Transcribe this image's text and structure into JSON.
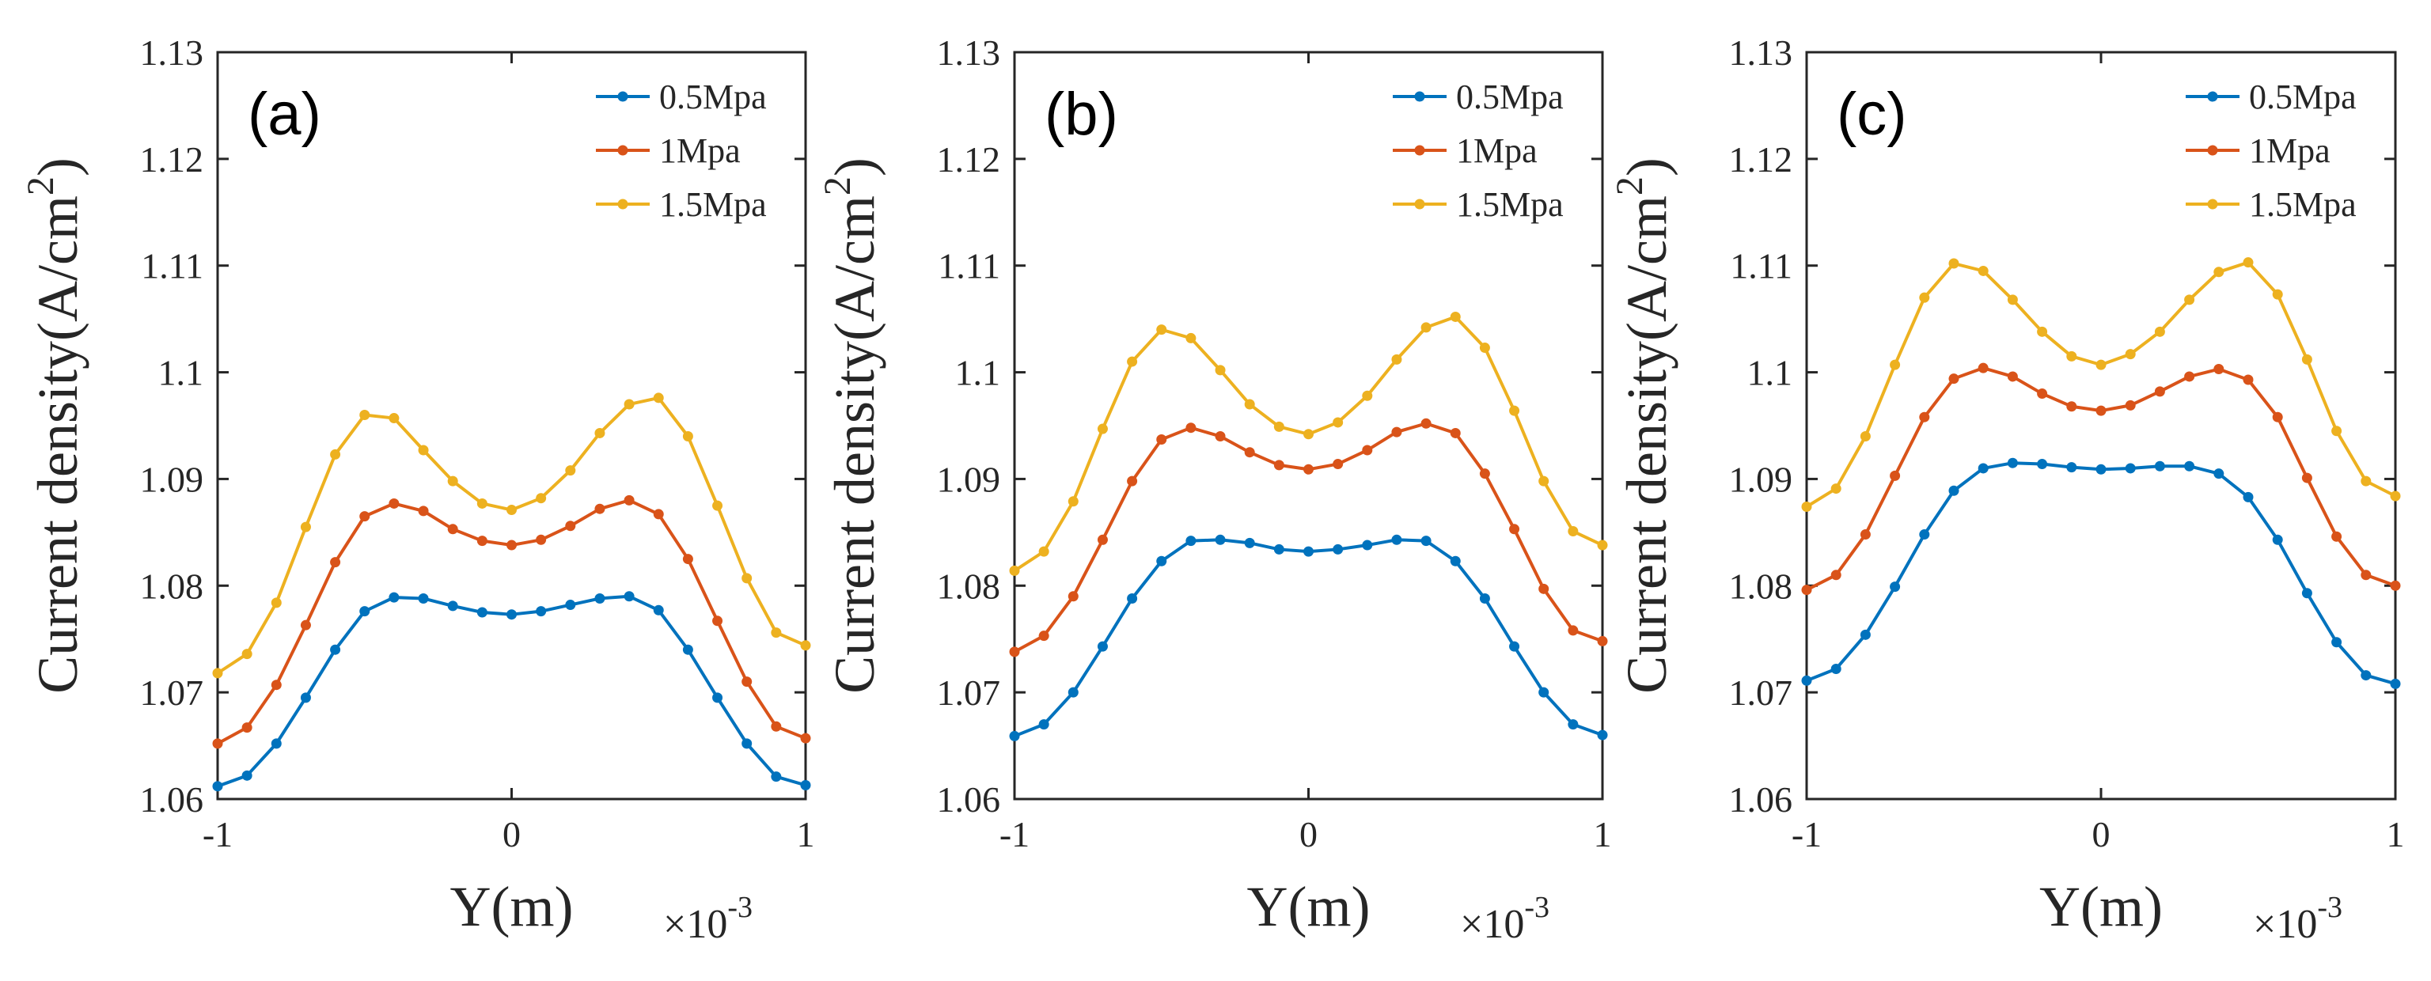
{
  "chart_data": [
    {
      "type": "line",
      "panel_label": "(a)",
      "xlabel": "Y(m)",
      "x_multiplier": "×10",
      "x_multiplier_exp": "-3",
      "ylabel": "Current density(A/cm",
      "ylabel_sup": "2",
      "ylabel_close": ")",
      "xlim": [
        -1,
        1
      ],
      "ylim": [
        1.06,
        1.13
      ],
      "xticks": [
        "-1",
        "0",
        "1"
      ],
      "yticks": [
        "1.06",
        "1.07",
        "1.08",
        "1.09",
        "1.1",
        "1.11",
        "1.12",
        "1.13"
      ],
      "legend_position": "top-right",
      "x": [
        -1,
        -0.9,
        -0.8,
        -0.7,
        -0.6,
        -0.5,
        -0.4,
        -0.3,
        -0.2,
        -0.1,
        0,
        0.1,
        0.2,
        0.3,
        0.4,
        0.5,
        0.6,
        0.7,
        0.8,
        0.9,
        1
      ],
      "series": [
        {
          "name": "0.5Mpa",
          "color": "#0072BD",
          "values": [
            1.0612,
            1.0622,
            1.0652,
            1.0695,
            1.074,
            1.0776,
            1.0789,
            1.0788,
            1.0781,
            1.0775,
            1.0773,
            1.0776,
            1.0782,
            1.0788,
            1.079,
            1.0777,
            1.074,
            1.0695,
            1.0652,
            1.0621,
            1.0613
          ]
        },
        {
          "name": "1Mpa",
          "color": "#D95319",
          "values": [
            1.0652,
            1.0667,
            1.0707,
            1.0763,
            1.0822,
            1.0865,
            1.0877,
            1.087,
            1.0853,
            1.0842,
            1.0838,
            1.0843,
            1.0856,
            1.0872,
            1.088,
            1.0867,
            1.0825,
            1.0767,
            1.071,
            1.0668,
            1.0657
          ]
        },
        {
          "name": "1.5Mpa",
          "color": "#EDB120",
          "values": [
            1.0718,
            1.0736,
            1.0784,
            1.0855,
            1.0923,
            1.096,
            1.0957,
            1.0927,
            1.0898,
            1.0877,
            1.0871,
            1.0882,
            1.0908,
            1.0943,
            1.097,
            1.0976,
            1.094,
            1.0875,
            1.0807,
            1.0756,
            1.0744
          ]
        }
      ]
    },
    {
      "type": "line",
      "panel_label": "(b)",
      "xlabel": "Y(m)",
      "x_multiplier": "×10",
      "x_multiplier_exp": "-3",
      "ylabel": "Current density(A/cm",
      "ylabel_sup": "2",
      "ylabel_close": ")",
      "xlim": [
        -1,
        1
      ],
      "ylim": [
        1.06,
        1.13
      ],
      "xticks": [
        "-1",
        "0",
        "1"
      ],
      "yticks": [
        "1.06",
        "1.07",
        "1.08",
        "1.09",
        "1.1",
        "1.11",
        "1.12",
        "1.13"
      ],
      "legend_position": "top-right",
      "x": [
        -1,
        -0.9,
        -0.8,
        -0.7,
        -0.6,
        -0.5,
        -0.4,
        -0.3,
        -0.2,
        -0.1,
        0,
        0.1,
        0.2,
        0.3,
        0.4,
        0.5,
        0.6,
        0.7,
        0.8,
        0.9,
        1
      ],
      "series": [
        {
          "name": "0.5Mpa",
          "color": "#0072BD",
          "values": [
            1.0659,
            1.067,
            1.07,
            1.0743,
            1.0788,
            1.0823,
            1.0842,
            1.0843,
            1.084,
            1.0834,
            1.0832,
            1.0834,
            1.0838,
            1.0843,
            1.0842,
            1.0823,
            1.0788,
            1.0743,
            1.07,
            1.067,
            1.066
          ]
        },
        {
          "name": "1Mpa",
          "color": "#D95319",
          "values": [
            1.0738,
            1.0753,
            1.079,
            1.0843,
            1.0898,
            1.0937,
            1.0948,
            1.094,
            1.0925,
            1.0913,
            1.0909,
            1.0914,
            1.0927,
            1.0944,
            1.0952,
            1.0943,
            1.0905,
            1.0853,
            1.0797,
            1.0758,
            1.0748
          ]
        },
        {
          "name": "1.5Mpa",
          "color": "#EDB120",
          "values": [
            1.0814,
            1.0832,
            1.0879,
            1.0947,
            1.101,
            1.104,
            1.1032,
            1.1002,
            1.097,
            1.0949,
            1.0942,
            1.0953,
            1.0978,
            1.1012,
            1.1042,
            1.1052,
            1.1023,
            1.0964,
            1.0898,
            1.0851,
            1.0838
          ]
        }
      ]
    },
    {
      "type": "line",
      "panel_label": "(c)",
      "xlabel": "Y(m)",
      "x_multiplier": "×10",
      "x_multiplier_exp": "-3",
      "ylabel": "Current density(A/cm",
      "ylabel_sup": "2",
      "ylabel_close": ")",
      "xlim": [
        -1,
        1
      ],
      "ylim": [
        1.06,
        1.13
      ],
      "xticks": [
        "-1",
        "0",
        "1"
      ],
      "yticks": [
        "1.06",
        "1.07",
        "1.08",
        "1.09",
        "1.1",
        "1.11",
        "1.12",
        "1.13"
      ],
      "legend_position": "top-right",
      "x": [
        -1,
        -0.9,
        -0.8,
        -0.7,
        -0.6,
        -0.5,
        -0.4,
        -0.3,
        -0.2,
        -0.1,
        0,
        0.1,
        0.2,
        0.3,
        0.4,
        0.5,
        0.6,
        0.7,
        0.8,
        0.9,
        1
      ],
      "series": [
        {
          "name": "0.5Mpa",
          "color": "#0072BD",
          "values": [
            1.0711,
            1.0722,
            1.0754,
            1.0799,
            1.0848,
            1.0889,
            1.091,
            1.0915,
            1.0914,
            1.0911,
            1.0909,
            1.091,
            1.0912,
            1.0912,
            1.0905,
            1.0883,
            1.0843,
            1.0793,
            1.0747,
            1.0716,
            1.0708
          ]
        },
        {
          "name": "1Mpa",
          "color": "#D95319",
          "values": [
            1.0796,
            1.081,
            1.0848,
            1.0903,
            1.0958,
            1.0994,
            1.1004,
            1.0996,
            1.098,
            1.0968,
            1.0964,
            1.0969,
            1.0982,
            1.0996,
            1.1003,
            1.0993,
            1.0958,
            1.0901,
            1.0846,
            1.081,
            1.08
          ]
        },
        {
          "name": "1.5Mpa",
          "color": "#EDB120",
          "values": [
            1.0874,
            1.0891,
            1.094,
            1.1007,
            1.107,
            1.1102,
            1.1095,
            1.1068,
            1.1038,
            1.1015,
            1.1007,
            1.1017,
            1.1038,
            1.1068,
            1.1094,
            1.1103,
            1.1073,
            1.1012,
            1.0945,
            1.0898,
            1.0884
          ]
        }
      ]
    }
  ]
}
